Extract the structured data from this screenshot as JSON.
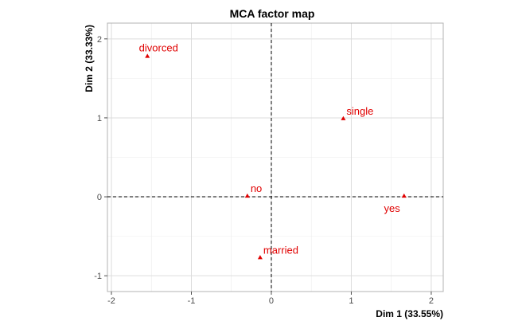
{
  "chart_data": {
    "type": "scatter",
    "title": "MCA factor map",
    "xlabel": "Dim 1 (33.55%)",
    "ylabel": "Dim 2 (33.33%)",
    "xlim": [
      -2.05,
      2.15
    ],
    "ylim": [
      -1.2,
      2.2
    ],
    "xticks": [
      -2,
      -1,
      0,
      1,
      2
    ],
    "yticks": [
      -1,
      0,
      1,
      2
    ],
    "grid": true,
    "reference_lines": {
      "x": 0,
      "y": 0,
      "style": "dashed"
    },
    "marker_color": "#e00000",
    "points": [
      {
        "label": "divorced",
        "x": -1.55,
        "y": 1.78,
        "label_pos": "above"
      },
      {
        "label": "single",
        "x": 0.9,
        "y": 0.99,
        "label_pos": "above-right"
      },
      {
        "label": "no",
        "x": -0.3,
        "y": 0.01,
        "label_pos": "above-right"
      },
      {
        "label": "yes",
        "x": 1.66,
        "y": 0.01,
        "label_pos": "below-left"
      },
      {
        "label": "married",
        "x": -0.14,
        "y": -0.77,
        "label_pos": "above-right"
      }
    ]
  }
}
